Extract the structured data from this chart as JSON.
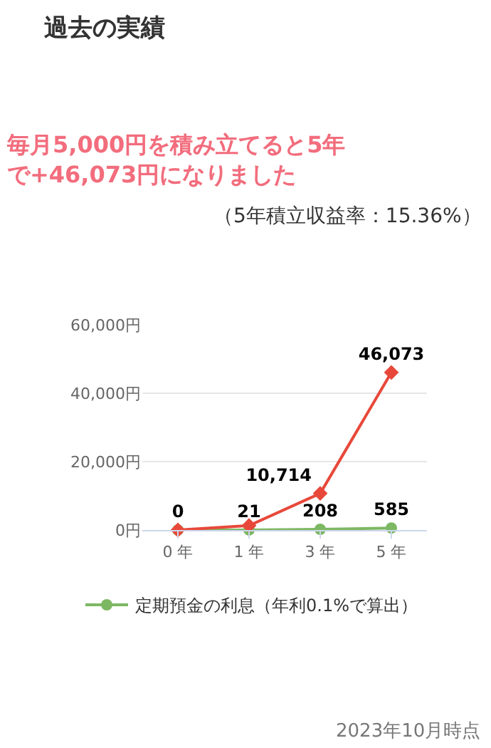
{
  "chart_data": {
    "type": "line",
    "title": "過去の実績",
    "subtitle": "毎月5,000円を積み立てると5年で+46,073円になりました",
    "annotations": [
      "（5年積立収益率：15.36%）",
      "2023年10月時点"
    ],
    "categories": [
      "0 年",
      "1 年",
      "3 年",
      "5 年"
    ],
    "series": [
      {
        "name": "定期預金の利息（年利0.1%で算出）",
        "color": "#7cb862",
        "marker": "circle",
        "values": [
          0,
          21,
          208,
          585
        ],
        "value_labels": [
          null,
          "21",
          "208",
          "585"
        ]
      },
      {
        "color": "#e8483a",
        "marker": "diamond",
        "values": [
          0,
          1300,
          10714,
          46073
        ],
        "value_labels": [
          "0",
          null,
          "10,714",
          "46,073"
        ]
      }
    ],
    "ylim": [
      0,
      60000
    ],
    "yticks": [
      {
        "value": 0,
        "label": "0円"
      },
      {
        "value": 20000,
        "label": "20,000円"
      },
      {
        "value": 40000,
        "label": "40,000円"
      },
      {
        "value": 60000,
        "label": "60,000円"
      }
    ],
    "grid": "y",
    "legend": "bottom"
  }
}
